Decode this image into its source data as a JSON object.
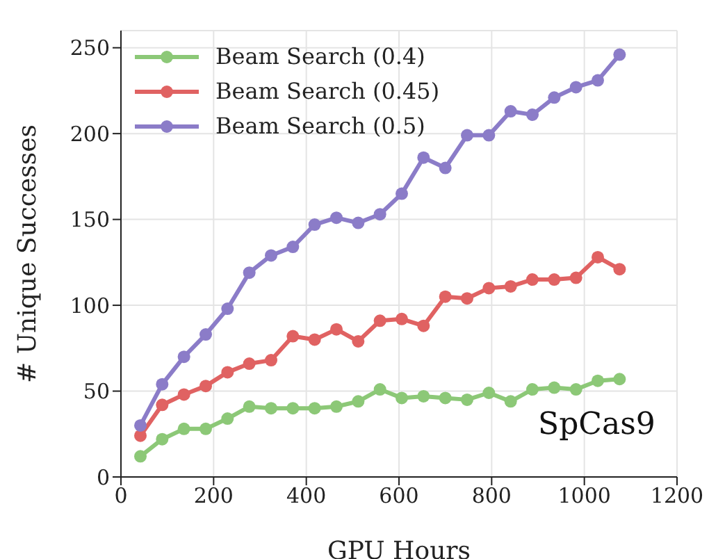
{
  "chart_data": {
    "type": "line",
    "xlabel": "GPU Hours",
    "ylabel": "# Unique Successes",
    "annotations": [
      "SpCas9"
    ],
    "x": [
      42,
      89,
      136,
      183,
      230,
      277,
      324,
      371,
      418,
      465,
      512,
      559,
      606,
      653,
      700,
      747,
      794,
      841,
      888,
      935,
      982,
      1029,
      1076
    ],
    "xlim": [
      0,
      1200
    ],
    "xticks": [
      0,
      200,
      400,
      600,
      800,
      1000,
      1200
    ],
    "ylim": [
      0,
      260
    ],
    "yticks": [
      0,
      50,
      100,
      150,
      200,
      250
    ],
    "grid": true,
    "legend": "top left",
    "marker": "circle",
    "line_style": "solid",
    "series": [
      {
        "name": "Beam Search (0.4)",
        "color": "#8cc877",
        "values": [
          12,
          22,
          28,
          28,
          34,
          41,
          40,
          40,
          40,
          41,
          44,
          51,
          46,
          47,
          46,
          45,
          49,
          44,
          51,
          52,
          51,
          56,
          57
        ]
      },
      {
        "name": "Beam Search (0.45)",
        "color": "#e06262",
        "values": [
          24,
          42,
          48,
          53,
          61,
          66,
          68,
          82,
          80,
          86,
          79,
          91,
          92,
          88,
          105,
          104,
          110,
          111,
          115,
          115,
          116,
          128,
          121
        ]
      },
      {
        "name": "Beam Search (0.5)",
        "color": "#8b7cc8",
        "values": [
          30,
          54,
          70,
          83,
          98,
          119,
          129,
          134,
          147,
          151,
          148,
          153,
          165,
          186,
          180,
          199,
          199,
          213,
          211,
          221,
          227,
          231,
          246
        ]
      }
    ]
  }
}
